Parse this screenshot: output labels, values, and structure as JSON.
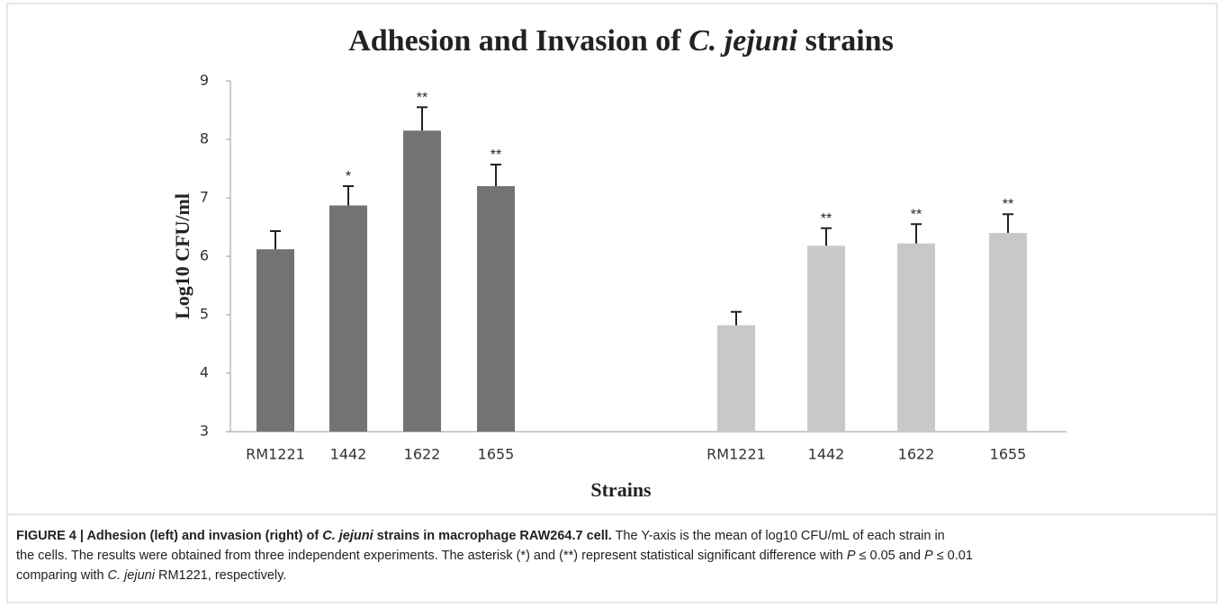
{
  "chart_data": {
    "type": "bar",
    "title": [
      "Adhesion and Invasion of ",
      "C. jejuni",
      " strains"
    ],
    "x_label": "Strains",
    "y_label": "Log10 CFU/ml",
    "categories": [
      "RM1221",
      "1442",
      "1622",
      "1655",
      null,
      "RM1221",
      "1442",
      "1622",
      "1655"
    ],
    "values": [
      6.12,
      6.87,
      8.15,
      7.2,
      null,
      4.82,
      6.18,
      6.22,
      6.4
    ],
    "errors": [
      0.31,
      0.33,
      0.4,
      0.37,
      null,
      0.23,
      0.3,
      0.33,
      0.32
    ],
    "annotations": [
      null,
      "*",
      "**",
      "**",
      null,
      null,
      "**",
      "**",
      "**"
    ],
    "colors": [
      "#737373",
      "#737373",
      "#737373",
      "#737373",
      null,
      "#c8c8c8",
      "#c8c8c8",
      "#c8c8c8",
      "#c8c8c8"
    ],
    "ylim": [
      3,
      9
    ],
    "yticks": [
      3,
      4,
      5,
      6,
      7,
      8,
      9
    ],
    "grid": false
  },
  "caption": {
    "lines": [
      [
        {
          "text": "FIGURE 4 | Adhesion (left) and invasion (right) of ",
          "style": "bold"
        },
        {
          "text": "C. jejuni",
          "style": "bold-italic"
        },
        {
          "text": " strains in macrophage RAW264.7 cell.",
          "style": "bold"
        },
        {
          "text": " The Y-axis is the mean of log10 CFU/mL of each strain in",
          "style": "normal"
        }
      ],
      [
        {
          "text": "the cells. The results were obtained from three independent experiments. The asterisk (*) and (**) represent statistical significant difference with ",
          "style": "normal"
        },
        {
          "text": "P",
          "style": "italic"
        },
        {
          "text": " ≤ 0.05 and ",
          "style": "normal"
        },
        {
          "text": "P",
          "style": "italic"
        },
        {
          "text": " ≤ 0.01",
          "style": "normal"
        }
      ],
      [
        {
          "text": "comparing with ",
          "style": "normal"
        },
        {
          "text": "C. jejuni",
          "style": "italic"
        },
        {
          "text": " RM1221, respectively.",
          "style": "normal"
        }
      ]
    ]
  }
}
